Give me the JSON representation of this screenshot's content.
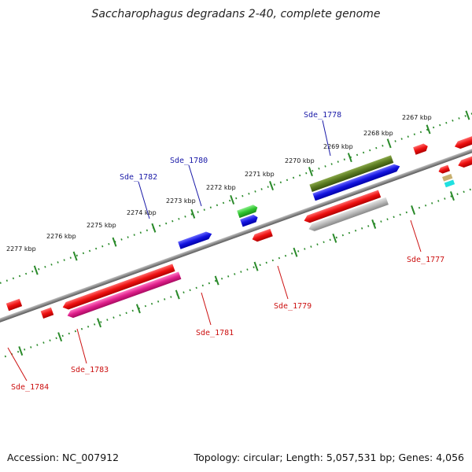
{
  "title": "Saccharophagus degradans 2-40, complete genome",
  "accession": "Accession: NC_007912",
  "summary": "Topology: circular; Length: 5,057,531 bp; Genes: 4,056",
  "scale_labels": [
    "2267 kbp",
    "2268 kbp",
    "2269 kbp",
    "2270 kbp",
    "2271 kbp",
    "2272 kbp",
    "2273 kbp",
    "2274 kbp",
    "2275 kbp",
    "2276 kbp",
    "2277 kbp"
  ],
  "genes_top": [
    {
      "label": "Sde_1778",
      "color": "#1a1aa8"
    },
    {
      "label": "Sde_1780",
      "color": "#1a1aa8"
    },
    {
      "label": "Sde_1782",
      "color": "#1a1aa8"
    }
  ],
  "genes_bottom": [
    {
      "label": "Sde_1777",
      "color": "#cc1010"
    },
    {
      "label": "Sde_1779",
      "color": "#cc1010"
    },
    {
      "label": "Sde_1781",
      "color": "#cc1010"
    },
    {
      "label": "Sde_1783",
      "color": "#cc1010"
    },
    {
      "label": "Sde_1784",
      "color": "#cc1010"
    }
  ],
  "colors": {
    "backbone": "#808080",
    "ticks": "#2a8a2a",
    "red": "#e01010",
    "blue": "#1414e0",
    "green": "#2ec42e",
    "olive": "#5a7a20",
    "gray": "#b4b4b4",
    "magenta": "#e0208c",
    "tan": "#c8b070",
    "cyan": "#20e0e0"
  }
}
